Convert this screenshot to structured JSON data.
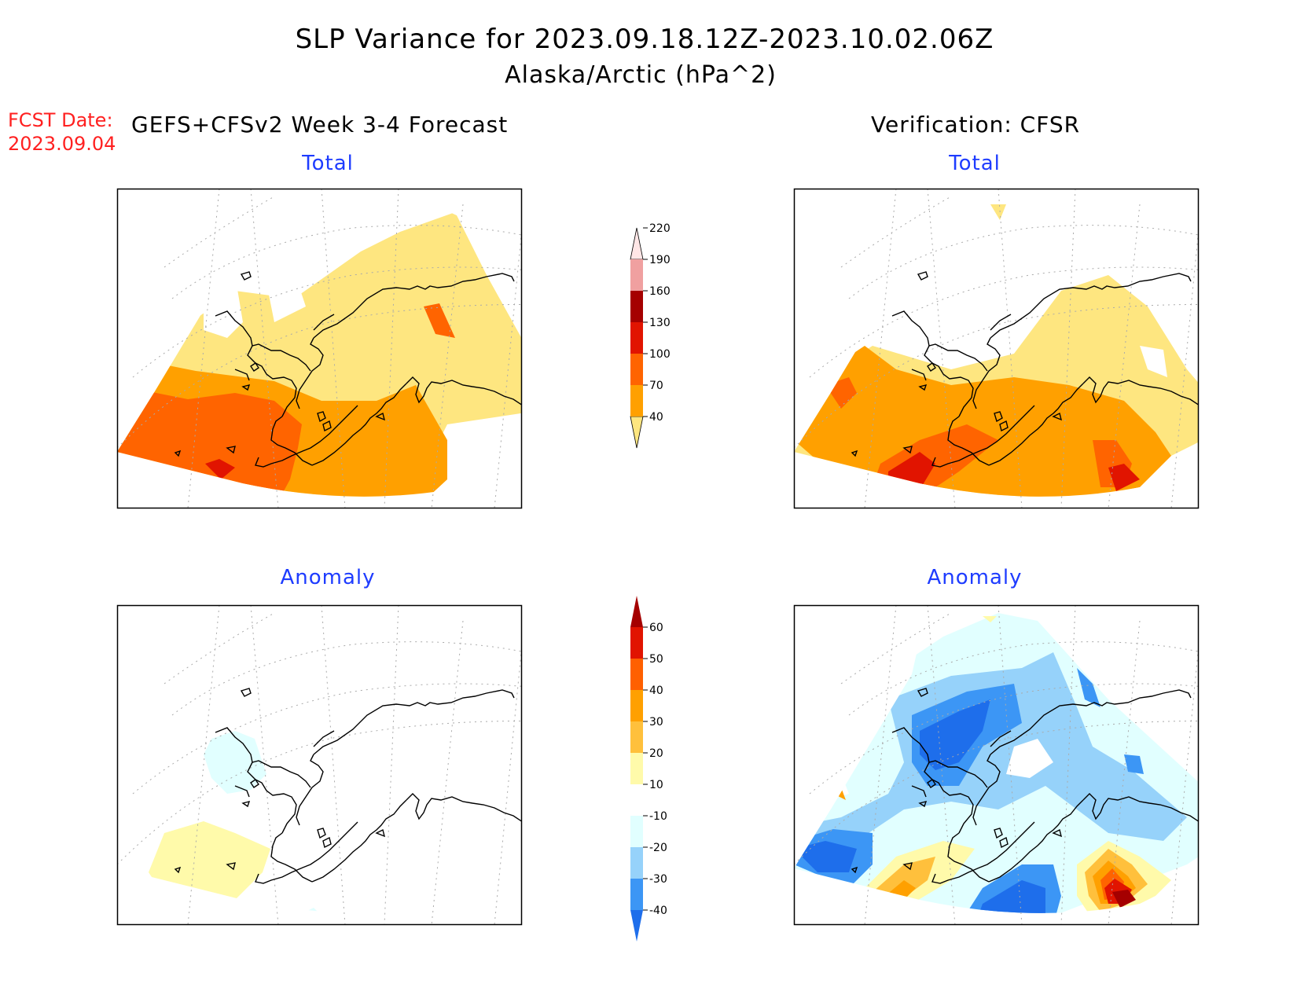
{
  "title": {
    "line1": "SLP Variance for 2023.09.18.12Z-2023.10.02.06Z",
    "line2": "Alaska/Arctic (hPa^2)"
  },
  "fcst_date": {
    "label": "FCST Date:",
    "value": "2023.09.04"
  },
  "columns": {
    "left": "GEFS+CFSv2 Week 3-4 Forecast",
    "right": "Verification: CFSR"
  },
  "panels": {
    "top_left": "Total",
    "top_right": "Total",
    "bottom_left": "Anomaly",
    "bottom_right": "Anomaly"
  },
  "colorbars": {
    "total": {
      "ticks": [
        "40",
        "70",
        "100",
        "130",
        "160",
        "190",
        "220"
      ],
      "colors": [
        "#fee680",
        "#ffa000",
        "#ff6400",
        "#e11400",
        "#a50000",
        "#f0a0a0",
        "#ffe6e6"
      ]
    },
    "anomaly": {
      "ticks": [
        "-40",
        "-30",
        "-20",
        "-10",
        "10",
        "20",
        "30",
        "40",
        "50",
        "60"
      ],
      "colors": [
        "#1e6eeb",
        "#3c96f5",
        "#96d2fa",
        "#e1ffff",
        "#ffffff",
        "#fffaaa",
        "#ffc03c",
        "#ffa000",
        "#ff6000",
        "#e11400",
        "#a50000"
      ]
    }
  },
  "palette": {
    "yellow": "#fee680",
    "orange": "#ffa000",
    "darkorange": "#ff6400",
    "red": "#e11400",
    "darkred": "#a50000",
    "lightyellow": "#fffaaa",
    "cyan": "#e1ffff",
    "lightblue": "#96d2fa",
    "blue": "#3c96f5",
    "darkblue": "#1e6eeb",
    "title_blue": "#1e3cff",
    "fcst_red": "#ff2020"
  }
}
